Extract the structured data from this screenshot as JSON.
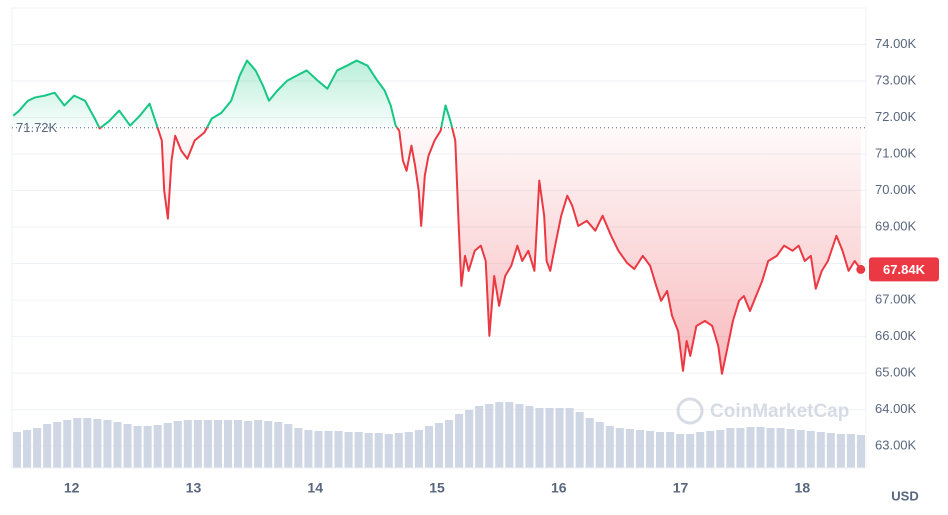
{
  "chart_data": {
    "type": "line",
    "series": [
      {
        "up_color": "#16c784",
        "down_color": "#ea3943",
        "x": [
          11.52,
          11.57,
          11.64,
          11.7,
          11.78,
          11.86,
          11.94,
          12.02,
          12.11,
          12.19,
          12.23,
          12.31,
          12.39,
          12.48,
          12.56,
          12.64,
          12.7,
          12.74,
          12.76,
          12.79,
          12.82,
          12.85,
          12.9,
          12.95,
          13.01,
          13.09,
          13.15,
          13.23,
          13.31,
          13.38,
          13.44,
          13.51,
          13.57,
          13.62,
          13.69,
          13.77,
          13.85,
          13.93,
          14.02,
          14.1,
          14.18,
          14.26,
          14.34,
          14.43,
          14.51,
          14.57,
          14.62,
          14.66,
          14.69,
          14.72,
          14.75,
          14.79,
          14.82,
          14.85,
          14.87,
          14.9,
          14.93,
          14.98,
          15.03,
          15.07,
          15.11,
          15.15,
          15.18,
          15.2,
          15.23,
          15.26,
          15.31,
          15.36,
          15.4,
          15.43,
          15.47,
          15.51,
          15.56,
          15.61,
          15.66,
          15.7,
          15.75,
          15.8,
          15.84,
          15.88,
          15.9,
          15.93,
          15.97,
          16.02,
          16.07,
          16.11,
          16.16,
          16.23,
          16.3,
          16.36,
          16.43,
          16.49,
          16.56,
          16.62,
          16.69,
          16.75,
          16.8,
          16.84,
          16.89,
          16.93,
          16.98,
          17.02,
          17.05,
          17.08,
          17.13,
          17.2,
          17.26,
          17.31,
          17.34,
          17.38,
          17.43,
          17.48,
          17.52,
          17.57,
          17.62,
          17.67,
          17.72,
          17.79,
          17.85,
          17.92,
          17.97,
          18.02,
          18.07,
          18.11,
          18.16,
          18.21,
          18.28,
          18.33,
          18.38,
          18.43,
          18.48
        ],
        "values": [
          72050,
          72190,
          72460,
          72550,
          72600,
          72680,
          72330,
          72600,
          72460,
          71970,
          71700,
          71910,
          72190,
          71780,
          72050,
          72380,
          71780,
          71370,
          69990,
          69230,
          70820,
          71500,
          71090,
          70870,
          71370,
          71590,
          71970,
          72130,
          72460,
          73150,
          73560,
          73290,
          72880,
          72460,
          72740,
          73010,
          73150,
          73290,
          73010,
          72790,
          73290,
          73420,
          73560,
          73420,
          73010,
          72740,
          72330,
          71780,
          71640,
          70820,
          70540,
          71230,
          70680,
          69990,
          69030,
          70410,
          70950,
          71370,
          71640,
          72330,
          71910,
          71370,
          68900,
          67390,
          68210,
          67800,
          68350,
          68490,
          68070,
          66020,
          67660,
          66840,
          67660,
          67940,
          68490,
          68070,
          68350,
          67800,
          70270,
          69310,
          68070,
          67800,
          68490,
          69310,
          69860,
          69590,
          69030,
          69170,
          68900,
          69310,
          68760,
          68350,
          68020,
          67850,
          68210,
          67940,
          67390,
          66980,
          67250,
          66570,
          66150,
          65060,
          65880,
          65470,
          66290,
          66430,
          66290,
          65740,
          64980,
          65610,
          66430,
          66980,
          67110,
          66700,
          67110,
          67520,
          68070,
          68210,
          68490,
          68350,
          68490,
          68070,
          68210,
          67310,
          67800,
          68070,
          68760,
          68350,
          67800,
          68070,
          67840
        ]
      }
    ],
    "baseline": {
      "value": 71720,
      "label": "71.72K"
    },
    "current": {
      "value": 67840,
      "label": "67.84K"
    },
    "volume": {
      "color": "#cfd6e4",
      "ylim": [
        0,
        100
      ],
      "values": [
        36,
        38,
        40,
        44,
        46,
        48,
        50,
        50,
        49,
        48,
        46,
        44,
        42,
        42,
        43,
        45,
        47,
        48,
        48,
        48,
        48,
        48,
        48,
        47,
        48,
        47,
        46,
        44,
        40,
        38,
        37,
        37,
        37,
        36,
        36,
        35,
        35,
        34,
        35,
        36,
        38,
        42,
        45,
        48,
        54,
        58,
        62,
        64,
        66,
        66,
        64,
        62,
        60,
        60,
        60,
        60,
        56,
        50,
        46,
        42,
        40,
        39,
        38,
        37,
        36,
        36,
        34,
        34,
        36,
        37,
        38,
        40,
        40,
        41,
        41,
        40,
        40,
        39,
        38,
        37,
        36,
        35,
        34,
        34,
        33
      ]
    },
    "xlim": [
      11.51,
      18.49
    ],
    "xticks": [
      12,
      13,
      14,
      15,
      16,
      17,
      18
    ],
    "ylim": [
      62400,
      75000
    ],
    "yticks": [
      {
        "value": 63000,
        "label": "63.00K"
      },
      {
        "value": 64000,
        "label": "64.00K"
      },
      {
        "value": 65000,
        "label": "65.00K"
      },
      {
        "value": 66000,
        "label": "66.00K"
      },
      {
        "value": 67000,
        "label": "67.00K"
      },
      {
        "value": 68000,
        "label": "68.00K"
      },
      {
        "value": 69000,
        "label": "69.00K"
      },
      {
        "value": 70000,
        "label": "70.00K"
      },
      {
        "value": 71000,
        "label": "71.00K"
      },
      {
        "value": 72000,
        "label": "72.00K"
      },
      {
        "value": 73000,
        "label": "73.00K"
      },
      {
        "value": 74000,
        "label": "74.00K"
      }
    ],
    "grid": true,
    "currency": "USD",
    "watermark": "CoinMarketCap"
  }
}
